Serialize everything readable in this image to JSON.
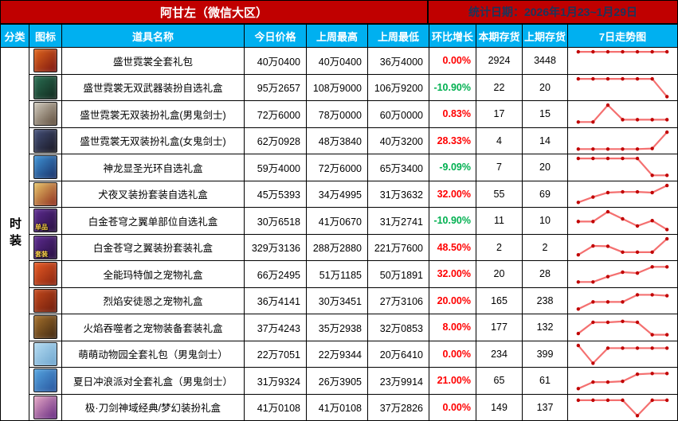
{
  "title_bar": {
    "title": "阿甘左（微信大区）",
    "date_label": "统计日期：2026年1月23~1月29日"
  },
  "columns": [
    "分类",
    "图标",
    "道具名称",
    "今日价格",
    "上周最高",
    "上周最低",
    "环比增长",
    "本期存货",
    "上期存货",
    "7日走势图"
  ],
  "category_label": "时装",
  "colors": {
    "title_bg": "#c00000",
    "title_text": "#ffffff",
    "date_text": "#17375e",
    "header_bg": "#00b0f0",
    "change_up": "#ff0000",
    "change_down": "#00b050",
    "spark_line": "#f47070",
    "spark_dot": "#c00000"
  },
  "rows": [
    {
      "icon": {
        "name": "gift-chest-icon",
        "c1": "#e0661c",
        "c2": "#7a1410",
        "badge": ""
      },
      "name": "盛世霓裳全套礼包",
      "today": "40万0400",
      "high": "40万0400",
      "low": "36万4000",
      "change": "0.00%",
      "dir": "up",
      "stock_now": "2924",
      "stock_prev": "3448",
      "trend": [
        1,
        1,
        1,
        1,
        1,
        1,
        1
      ]
    },
    {
      "icon": {
        "name": "dark-chest-icon",
        "c1": "#2a6e52",
        "c2": "#10271c",
        "badge": ""
      },
      "name": "盛世霓裳无双武器装扮自选礼盒",
      "today": "95万2657",
      "high": "108万9000",
      "low": "106万9200",
      "change": "-10.90%",
      "dir": "down",
      "stock_now": "22",
      "stock_prev": "20",
      "trend": [
        1,
        1,
        1,
        1,
        1,
        1,
        0
      ]
    },
    {
      "icon": {
        "name": "male-slayer-portrait-icon",
        "c1": "#cfc9bc",
        "c2": "#5c4a38",
        "badge": ""
      },
      "name": "盛世霓裳无双装扮礼盒(男鬼剑士)",
      "today": "72万6000",
      "high": "78万0000",
      "low": "60万0000",
      "change": "0.83%",
      "dir": "up",
      "stock_now": "17",
      "stock_prev": "15",
      "trend": [
        0.05,
        0.05,
        1,
        0.18,
        0.18,
        0.18,
        0.18
      ]
    },
    {
      "icon": {
        "name": "female-slayer-portrait-icon",
        "c1": "#44507a",
        "c2": "#17151f",
        "badge": ""
      },
      "name": "盛世霓裳无双装扮礼盒(女鬼剑士)",
      "today": "62万0928",
      "high": "48万3840",
      "low": "40万3200",
      "change": "28.33%",
      "dir": "up",
      "stock_now": "4",
      "stock_prev": "14",
      "trend": [
        0.05,
        0.05,
        0.05,
        0.05,
        0.05,
        0.08,
        1
      ]
    },
    {
      "icon": {
        "name": "halo-box-icon",
        "c1": "#3f93d6",
        "c2": "#182f66",
        "badge": ""
      },
      "name": "神龙显圣光环自选礼盒",
      "today": "59万4000",
      "high": "72万6000",
      "low": "65万3400",
      "change": "-9.09%",
      "dir": "down",
      "stock_now": "7",
      "stock_prev": "20",
      "trend": [
        1,
        1,
        1,
        1,
        1,
        0.05,
        0.05
      ]
    },
    {
      "icon": {
        "name": "inuyasha-portrait-icon",
        "c1": "#e8c468",
        "c2": "#8d2c1c",
        "badge": ""
      },
      "name": "犬夜叉装扮套装自选礼盒",
      "today": "45万5393",
      "high": "34万4995",
      "low": "31万3632",
      "change": "32.00%",
      "dir": "up",
      "stock_now": "55",
      "stock_prev": "69",
      "trend": [
        0.05,
        0.35,
        0.6,
        0.64,
        0.64,
        0.6,
        1
      ]
    },
    {
      "icon": {
        "name": "purple-wings-single-icon",
        "c1": "#5c2b90",
        "c2": "#260e3e",
        "badge": "单品"
      },
      "name": "白金苍穹之翼单部位自选礼盒",
      "today": "30万6518",
      "high": "41万0670",
      "low": "31万2741",
      "change": "-10.90%",
      "dir": "down",
      "stock_now": "11",
      "stock_prev": "10",
      "trend": [
        0.45,
        0.45,
        1,
        0.6,
        0.2,
        0.5,
        0
      ]
    },
    {
      "icon": {
        "name": "purple-wings-set-icon",
        "c1": "#5c2b90",
        "c2": "#260e3e",
        "badge": "套装"
      },
      "name": "白金苍穹之翼装扮套装礼盒",
      "today": "329万3136",
      "high": "288万2880",
      "low": "221万7600",
      "change": "48.50%",
      "dir": "up",
      "stock_now": "2",
      "stock_prev": "2",
      "trend": [
        0.1,
        0.6,
        0.58,
        0.25,
        0.25,
        0.25,
        1
      ]
    },
    {
      "icon": {
        "name": "red-giftbox-icon",
        "c1": "#e65a24",
        "c2": "#87230f",
        "badge": ""
      },
      "name": "全能玛特伽之宠物礼盒",
      "today": "66万2495",
      "high": "51万1185",
      "low": "50万1891",
      "change": "32.00%",
      "dir": "up",
      "stock_now": "20",
      "stock_prev": "28",
      "trend": [
        0.05,
        0.05,
        0.35,
        0.6,
        0.55,
        0.9,
        0.9
      ]
    },
    {
      "icon": {
        "name": "red-giftbox-icon",
        "c1": "#c4491c",
        "c2": "#6d1c0c",
        "badge": ""
      },
      "name": "烈焰安徒恩之宠物礼盒",
      "today": "36万4141",
      "high": "30万3451",
      "low": "27万3106",
      "change": "20.00%",
      "dir": "up",
      "stock_now": "165",
      "stock_prev": "238",
      "trend": [
        0.05,
        0.45,
        0.45,
        0.45,
        0.85,
        0.85,
        0.8
      ]
    },
    {
      "icon": {
        "name": "rock-creature-icon",
        "c1": "#a5712c",
        "c2": "#3f2610",
        "badge": ""
      },
      "name": "火焰吞噬者之宠物装备套装礼盒",
      "today": "37万4243",
      "high": "35万2938",
      "low": "32万0853",
      "change": "8.00%",
      "dir": "up",
      "stock_now": "177",
      "stock_prev": "132",
      "trend": [
        0.15,
        0.78,
        0.78,
        0.83,
        0.78,
        0.08,
        0.08
      ]
    },
    {
      "icon": {
        "name": "puppy-zoo-icon",
        "c1": "#b4dcf2",
        "c2": "#6ca4cd",
        "badge": ""
      },
      "name": "萌萌动物园全套礼包（男鬼剑士）",
      "today": "22万7051",
      "high": "22万9344",
      "low": "20万6410",
      "change": "0.00%",
      "dir": "up",
      "stock_now": "234",
      "stock_prev": "399",
      "trend": [
        1,
        0,
        0.85,
        0.85,
        0.85,
        0.85,
        0.85
      ]
    },
    {
      "icon": {
        "name": "summer-surf-icon",
        "c1": "#55a5e0",
        "c2": "#26539c",
        "badge": ""
      },
      "name": "夏日冲浪派对全套礼盒（男鬼剑士）",
      "today": "31万9324",
      "high": "26万3905",
      "low": "23万9914",
      "change": "21.00%",
      "dir": "up",
      "stock_now": "65",
      "stock_prev": "61",
      "trend": [
        0.05,
        0.42,
        0.42,
        0.46,
        0.86,
        0.9,
        0.9
      ]
    },
    {
      "icon": {
        "name": "gift-bag-icon",
        "c1": "#e7a9c6",
        "c2": "#63277f",
        "badge": ""
      },
      "name": "极·刀剑神域经典/梦幻装扮礼盒",
      "today": "41万0108",
      "high": "41万0108",
      "low": "37万2826",
      "change": "0.00%",
      "dir": "up",
      "stock_now": "149",
      "stock_prev": "137",
      "trend": [
        0.92,
        0.92,
        0.92,
        0.92,
        0.05,
        0.92,
        0.92
      ]
    }
  ]
}
